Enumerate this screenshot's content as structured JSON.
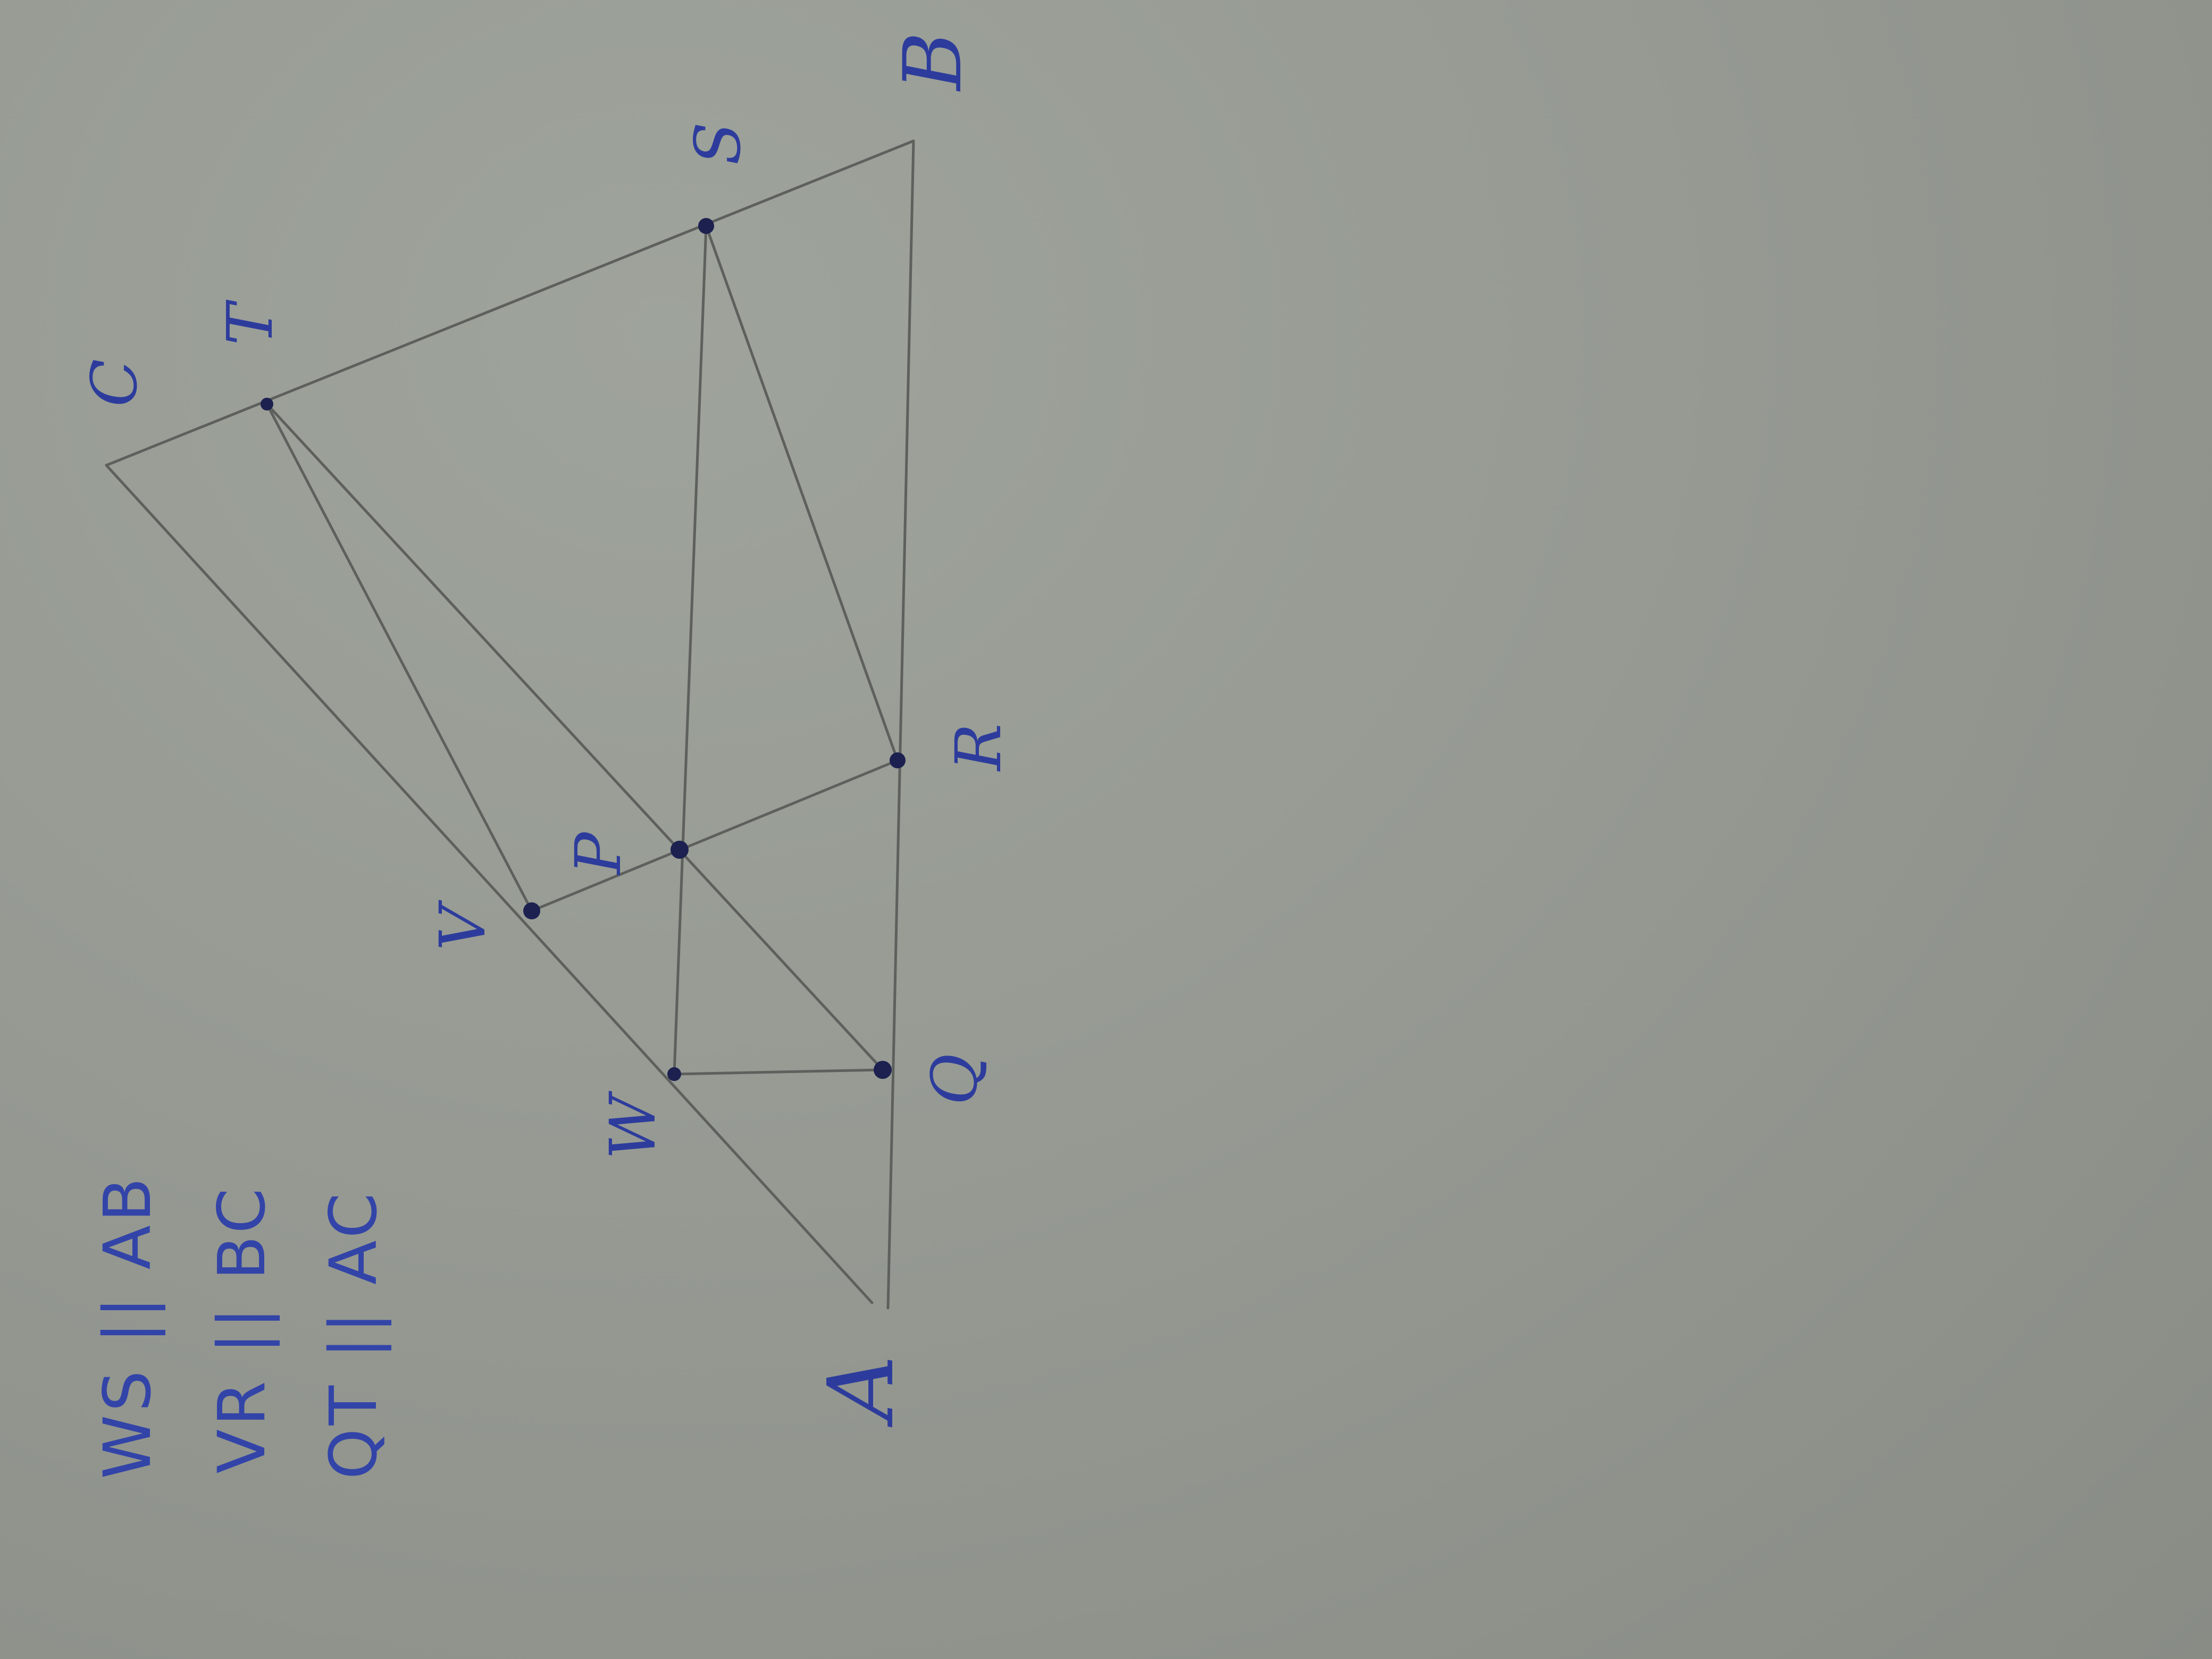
{
  "paper_color": "#969a93",
  "pencil_color": "#5d605c",
  "ink_color": "#2d3c9c",
  "point_color": "#1c2150",
  "labels": {
    "A": "A",
    "B": "B",
    "C": "C",
    "S": "S",
    "T": "T",
    "R": "R",
    "P": "P",
    "V": "V",
    "W": "W",
    "Q": "Q"
  },
  "conditions": [
    "WS || AB",
    "VR || BC",
    "QT || AC"
  ]
}
